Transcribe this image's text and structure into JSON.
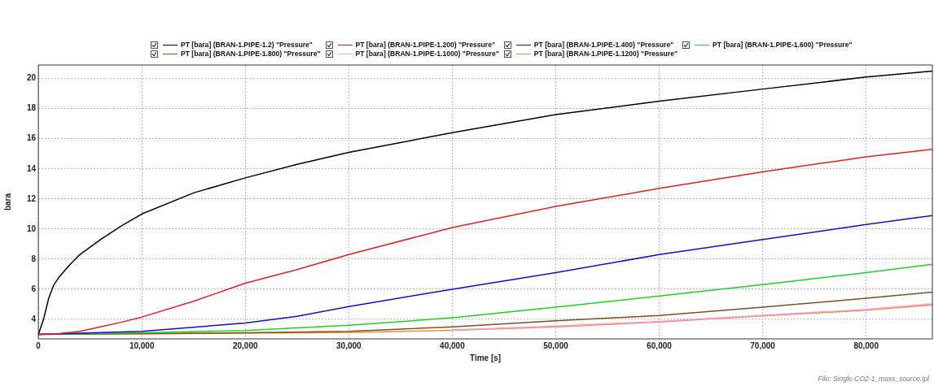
{
  "chart_data": {
    "type": "line",
    "xlabel": "Time [s]",
    "ylabel": "bara",
    "legend": "top",
    "grid": true,
    "marker": "none",
    "line_style": "solid",
    "xlim": [
      0,
      86400
    ],
    "ylim": [
      2.7,
      20.9
    ],
    "xticks": [
      0,
      {
        "value": 10000,
        "label": "10,000"
      },
      {
        "value": 20000,
        "label": "20,000"
      },
      {
        "value": 30000,
        "label": "30,000"
      },
      {
        "value": 40000,
        "label": "40,000"
      },
      {
        "value": 50000,
        "label": "50,000"
      },
      {
        "value": 60000,
        "label": "60,000"
      },
      {
        "value": 70000,
        "label": "70,000"
      },
      {
        "value": 80000,
        "label": "80,000"
      }
    ],
    "yticks": [
      4,
      6,
      8,
      10,
      12,
      14,
      16,
      18,
      20
    ],
    "annotations": [
      "File: Single-CO2-1_mass_source.tpl"
    ],
    "series": [
      {
        "name": "PT [bara] (BRAN-1.PIPE-1.2) \"Pressure\"",
        "color": "#000000",
        "x": [
          0,
          500,
          1000,
          1500,
          2000,
          3000,
          4000,
          5000,
          6000,
          8000,
          10000,
          15000,
          20000,
          25000,
          30000,
          40000,
          50000,
          60000,
          70000,
          80000,
          86400
        ],
        "values": [
          3,
          4,
          5.4,
          6.3,
          6.8,
          7.6,
          8.3,
          8.8,
          9.3,
          10.2,
          11,
          12.4,
          13.4,
          14.3,
          15.1,
          16.4,
          17.6,
          18.5,
          19.3,
          20.1,
          20.5
        ]
      },
      {
        "name": "PT [bara] (BRAN-1.PIPE-1.200) \"Pressure\"",
        "color": "#e02020",
        "x": [
          0,
          2000,
          4000,
          6000,
          8000,
          10000,
          15000,
          20000,
          25000,
          30000,
          40000,
          50000,
          60000,
          70000,
          80000,
          86400
        ],
        "values": [
          3,
          3.05,
          3.2,
          3.5,
          3.8,
          4.15,
          5.2,
          6.4,
          7.3,
          8.3,
          10.1,
          11.5,
          12.7,
          13.8,
          14.8,
          15.3
        ]
      },
      {
        "name": "PT [bara] (BRAN-1.PIPE-1.400) \"Pressure\"",
        "color": "#1010c0",
        "x": [
          0,
          10000,
          20000,
          25000,
          30000,
          40000,
          50000,
          60000,
          70000,
          80000,
          86400
        ],
        "values": [
          3,
          3.2,
          3.75,
          4.2,
          4.85,
          6,
          7.1,
          8.3,
          9.3,
          10.3,
          10.9
        ]
      },
      {
        "name": "PT [bara] (BRAN-1.PIPE-1.600) \"Pressure\"",
        "color": "#20d020",
        "x": [
          0,
          10000,
          20000,
          30000,
          40000,
          50000,
          60000,
          70000,
          80000,
          86400
        ],
        "values": [
          3,
          3.1,
          3.25,
          3.6,
          4.1,
          4.8,
          5.55,
          6.3,
          7.1,
          7.65
        ]
      },
      {
        "name": "PT [bara] (BRAN-1.PIPE-1.800) \"Pressure\"",
        "color": "#7a5020",
        "x": [
          0,
          20000,
          30000,
          40000,
          50000,
          60000,
          70000,
          80000,
          86400
        ],
        "values": [
          3,
          3.1,
          3.2,
          3.5,
          3.9,
          4.25,
          4.8,
          5.4,
          5.8
        ]
      },
      {
        "name": "PT [bara] (BRAN-1.PIPE-1.1000) \"Pressure\"",
        "color": "#f0a0e0",
        "x": [
          40000,
          50000,
          60000,
          70000,
          80000,
          86400
        ],
        "values": [
          3.3,
          3.55,
          3.86,
          4.27,
          4.66,
          5.04
        ]
      },
      {
        "name": "PT [bara] (BRAN-1.PIPE-1.1200) \"Pressure\"",
        "color": "#f09030",
        "x": [
          0,
          30000,
          40000,
          50000,
          60000,
          70000,
          80000,
          86400
        ],
        "values": [
          3,
          3.12,
          3.27,
          3.5,
          3.82,
          4.22,
          4.6,
          4.95
        ]
      }
    ]
  }
}
